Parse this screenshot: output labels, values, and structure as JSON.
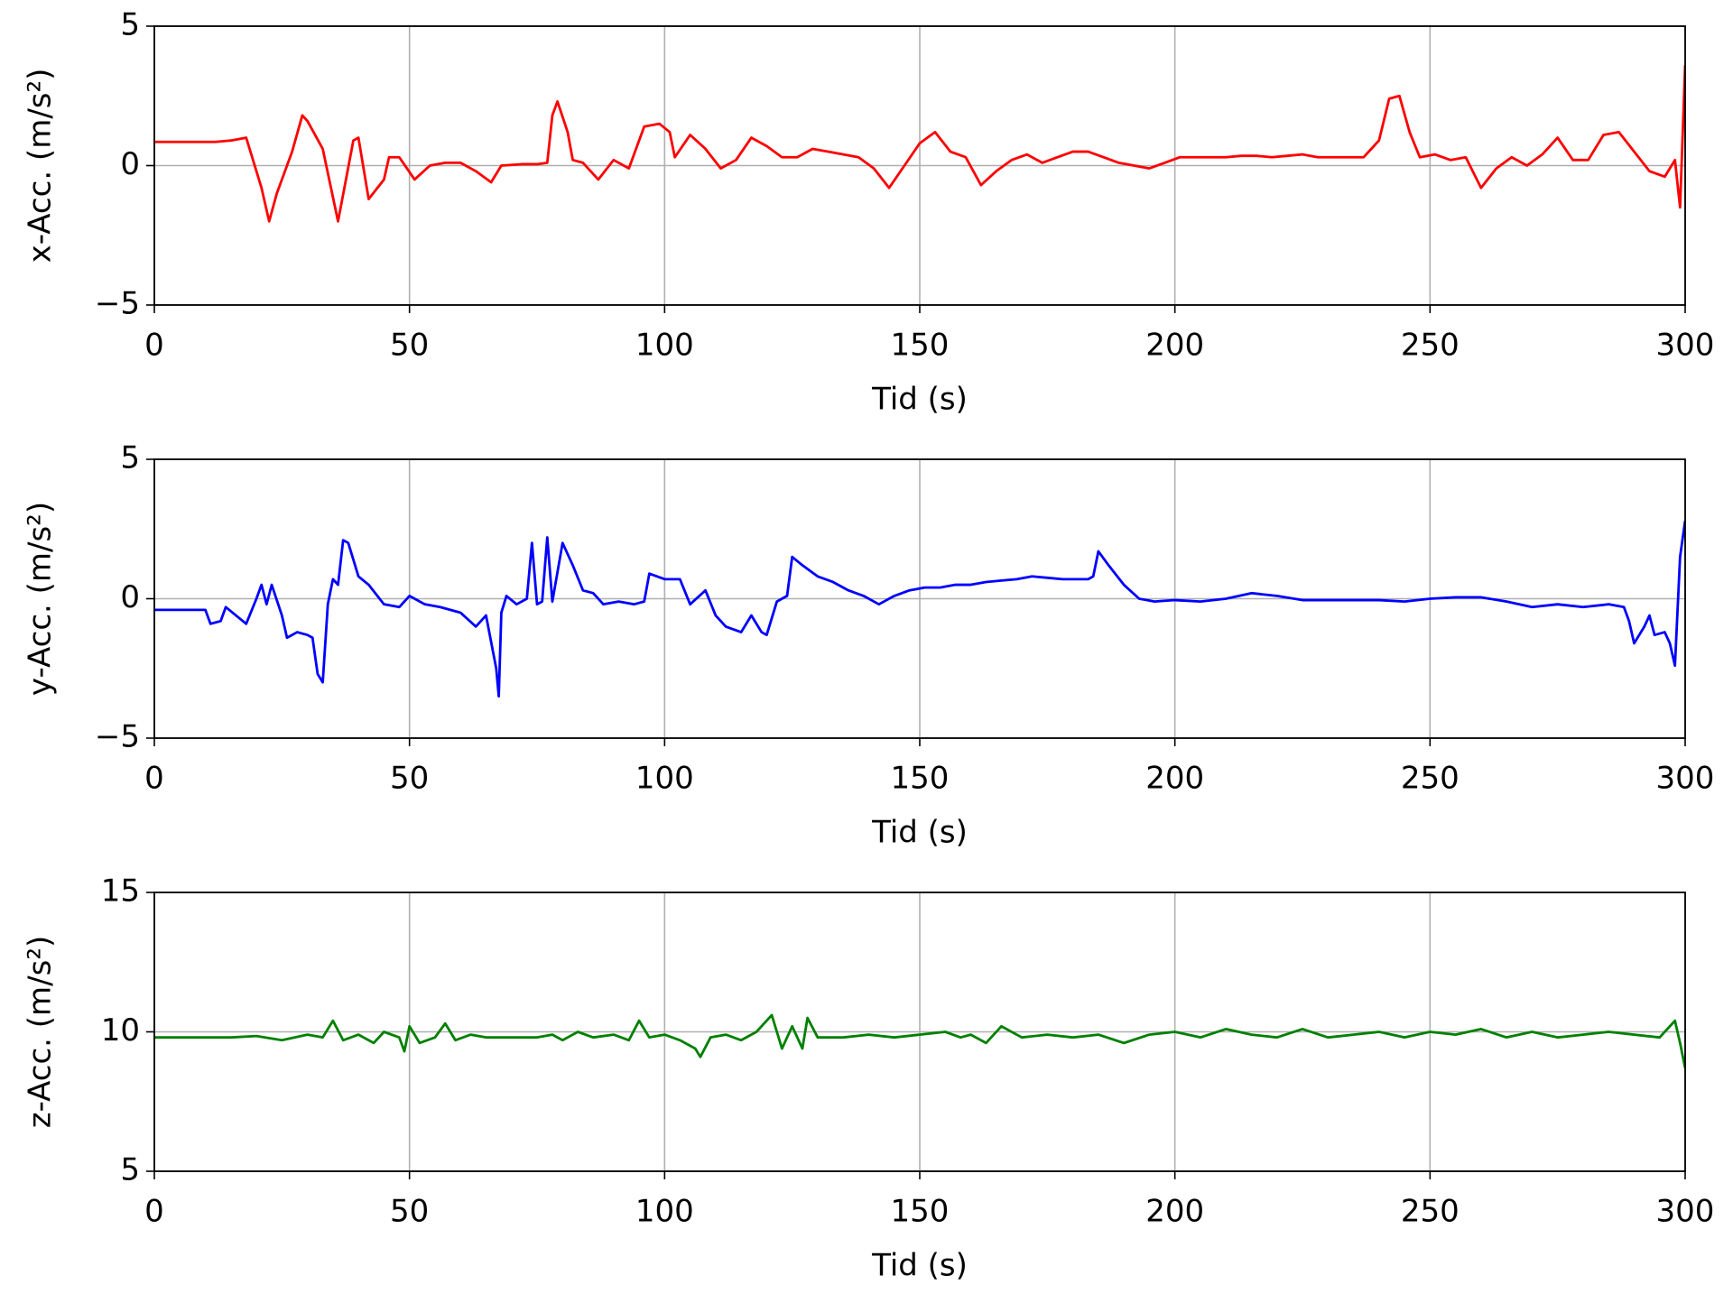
{
  "chart_data": [
    {
      "type": "line",
      "ylabel": "x-Acc. (m/s²)",
      "xlabel": "Tid (s)",
      "x": [
        0,
        3,
        6,
        9,
        12,
        15,
        18,
        21,
        22.5,
        24,
        27,
        29,
        30,
        33,
        36,
        39,
        40,
        42,
        45,
        46,
        48,
        51,
        54,
        57,
        60,
        63,
        66,
        68,
        72,
        75,
        77,
        78,
        79,
        81,
        82,
        84,
        87,
        90,
        93,
        96,
        99,
        101,
        102,
        105,
        108,
        111,
        114,
        117,
        120,
        123,
        126,
        129,
        132,
        135,
        138,
        141,
        144,
        147,
        150,
        153,
        156,
        159,
        162,
        165,
        168,
        171,
        174,
        177,
        180,
        183,
        186,
        189,
        192,
        195,
        198,
        201,
        204,
        207,
        210,
        213,
        216,
        219,
        222,
        225,
        228,
        231,
        234,
        237,
        240,
        242,
        244,
        246,
        248,
        251,
        254,
        257,
        260,
        263,
        266,
        269,
        272,
        275,
        278,
        281,
        284,
        287,
        290,
        293,
        296,
        298,
        299,
        300
      ],
      "series": [
        {
          "color": "#ff0000",
          "values": [
            0.85,
            0.85,
            0.85,
            0.85,
            0.85,
            0.9,
            1.0,
            -0.8,
            -2.0,
            -1.0,
            0.5,
            1.8,
            1.6,
            0.6,
            -2.0,
            0.9,
            1.0,
            -1.2,
            -0.5,
            0.3,
            0.3,
            -0.5,
            0,
            0.1,
            0.1,
            -0.2,
            -0.6,
            0,
            0.05,
            0.05,
            0.1,
            1.8,
            2.3,
            1.2,
            0.2,
            0.1,
            -0.5,
            0.2,
            -0.1,
            1.4,
            1.5,
            1.2,
            0.3,
            1.1,
            0.6,
            -0.1,
            0.2,
            1.0,
            0.7,
            0.3,
            0.3,
            0.6,
            0.5,
            0.4,
            0.3,
            -0.1,
            -0.8,
            0,
            0.8,
            1.2,
            0.5,
            0.3,
            -0.7,
            -0.2,
            0.2,
            0.4,
            0.1,
            0.3,
            0.5,
            0.5,
            0.3,
            0.1,
            0,
            -0.1,
            0.1,
            0.3,
            0.3,
            0.3,
            0.3,
            0.35,
            0.35,
            0.3,
            0.35,
            0.4,
            0.3,
            0.3,
            0.3,
            0.3,
            0.9,
            2.4,
            2.5,
            1.2,
            0.3,
            0.4,
            0.2,
            0.3,
            -0.8,
            -0.1,
            0.3,
            0,
            0.4,
            1.0,
            0.2,
            0.2,
            1.1,
            1.2,
            0.5,
            -0.2,
            -0.4,
            0.2,
            -1.5,
            3.6
          ]
        }
      ],
      "xlim": [
        0,
        300
      ],
      "xticks": [
        0,
        50,
        100,
        150,
        200,
        250,
        300
      ],
      "ylim": [
        -5,
        5
      ],
      "yticks": [
        {
          "value": -5,
          "label": "−5"
        },
        0,
        5
      ],
      "grid": true
    },
    {
      "type": "line",
      "ylabel": "y-Acc. (m/s²)",
      "xlabel": "Tid (s)",
      "x": [
        0,
        5,
        10,
        11,
        13,
        14,
        16,
        18,
        20,
        21,
        22,
        23,
        25,
        26,
        28,
        30,
        31,
        32,
        33,
        34,
        35,
        36,
        37,
        38,
        40,
        42,
        45,
        48,
        50,
        53,
        56,
        60,
        63,
        65,
        67,
        67.5,
        68,
        69,
        71,
        73,
        74,
        75,
        76,
        77,
        78,
        80,
        82,
        84,
        86,
        88,
        91,
        94,
        96,
        97,
        100,
        103,
        105,
        108,
        110,
        112,
        115,
        117,
        119,
        120,
        122,
        124,
        125,
        127,
        130,
        133,
        136,
        139,
        142,
        145,
        148,
        151,
        154,
        157,
        160,
        163,
        166,
        169,
        172,
        175,
        178,
        181,
        183,
        184,
        185,
        187,
        190,
        193,
        196,
        200,
        205,
        210,
        215,
        220,
        225,
        230,
        235,
        240,
        245,
        250,
        255,
        260,
        265,
        270,
        275,
        280,
        285,
        288,
        289,
        290,
        292,
        293,
        294,
        296,
        297,
        298,
        299,
        300
      ],
      "series": [
        {
          "color": "#0000ff",
          "values": [
            -0.4,
            -0.4,
            -0.4,
            -0.9,
            -0.8,
            -0.3,
            -0.6,
            -0.9,
            0,
            0.5,
            -0.2,
            0.5,
            -0.6,
            -1.4,
            -1.2,
            -1.3,
            -1.4,
            -2.7,
            -3.0,
            -0.2,
            0.7,
            0.5,
            2.1,
            2.0,
            0.8,
            0.5,
            -0.2,
            -0.3,
            0.1,
            -0.2,
            -0.3,
            -0.5,
            -1.0,
            -0.6,
            -2.5,
            -3.5,
            -0.5,
            0.1,
            -0.2,
            0,
            2.0,
            -0.2,
            -0.1,
            2.2,
            -0.1,
            2.0,
            1.2,
            0.3,
            0.2,
            -0.2,
            -0.1,
            -0.2,
            -0.1,
            0.9,
            0.7,
            0.7,
            -0.2,
            0.3,
            -0.6,
            -1.0,
            -1.2,
            -0.6,
            -1.2,
            -1.3,
            -0.1,
            0.1,
            1.5,
            1.2,
            0.8,
            0.6,
            0.3,
            0.1,
            -0.2,
            0.1,
            0.3,
            0.4,
            0.4,
            0.5,
            0.5,
            0.6,
            0.65,
            0.7,
            0.8,
            0.75,
            0.7,
            0.7,
            0.7,
            0.8,
            1.7,
            1.2,
            0.5,
            0,
            -0.1,
            -0.05,
            -0.1,
            0,
            0.2,
            0.1,
            -0.05,
            -0.05,
            -0.05,
            -0.05,
            -0.1,
            0,
            0.05,
            0.05,
            -0.1,
            -0.3,
            -0.2,
            -0.3,
            -0.2,
            -0.3,
            -0.8,
            -1.6,
            -1.0,
            -0.6,
            -1.3,
            -1.2,
            -1.6,
            -2.4,
            1.5,
            2.8
          ]
        }
      ],
      "xlim": [
        0,
        300
      ],
      "xticks": [
        0,
        50,
        100,
        150,
        200,
        250,
        300
      ],
      "ylim": [
        -5,
        5
      ],
      "yticks": [
        {
          "value": -5,
          "label": "−5"
        },
        0,
        5
      ],
      "grid": true
    },
    {
      "type": "line",
      "ylabel": "z-Acc. (m/s²)",
      "xlabel": "Tid (s)",
      "x": [
        0,
        10,
        15,
        20,
        25,
        30,
        33,
        35,
        37,
        40,
        43,
        45,
        48,
        49,
        50,
        52,
        55,
        57,
        59,
        62,
        65,
        70,
        75,
        78,
        80,
        83,
        86,
        90,
        93,
        95,
        97,
        100,
        103,
        106,
        107,
        109,
        112,
        115,
        118,
        121,
        123,
        125,
        127,
        128,
        130,
        135,
        140,
        145,
        150,
        155,
        158,
        160,
        163,
        166,
        170,
        175,
        180,
        185,
        190,
        195,
        200,
        205,
        210,
        215,
        220,
        225,
        230,
        235,
        240,
        245,
        250,
        255,
        260,
        265,
        270,
        275,
        280,
        285,
        290,
        295,
        298,
        299,
        300
      ],
      "series": [
        {
          "color": "#008000",
          "values": [
            9.8,
            9.8,
            9.8,
            9.85,
            9.7,
            9.9,
            9.8,
            10.4,
            9.7,
            9.9,
            9.6,
            10.0,
            9.8,
            9.3,
            10.2,
            9.6,
            9.8,
            10.3,
            9.7,
            9.9,
            9.8,
            9.8,
            9.8,
            9.9,
            9.7,
            10.0,
            9.8,
            9.9,
            9.7,
            10.4,
            9.8,
            9.9,
            9.7,
            9.4,
            9.1,
            9.8,
            9.9,
            9.7,
            10.0,
            10.6,
            9.4,
            10.2,
            9.4,
            10.5,
            9.8,
            9.8,
            9.9,
            9.8,
            9.9,
            10.0,
            9.8,
            9.9,
            9.6,
            10.2,
            9.8,
            9.9,
            9.8,
            9.9,
            9.6,
            9.9,
            10.0,
            9.8,
            10.1,
            9.9,
            9.8,
            10.1,
            9.8,
            9.9,
            10.0,
            9.8,
            10.0,
            9.9,
            10.1,
            9.8,
            10.0,
            9.8,
            9.9,
            10.0,
            9.9,
            9.8,
            10.4,
            9.6,
            8.7
          ]
        }
      ],
      "xlim": [
        0,
        300
      ],
      "xticks": [
        0,
        50,
        100,
        150,
        200,
        250,
        300
      ],
      "ylim": [
        5,
        15
      ],
      "yticks": [
        5,
        10,
        15
      ],
      "grid": true
    }
  ]
}
